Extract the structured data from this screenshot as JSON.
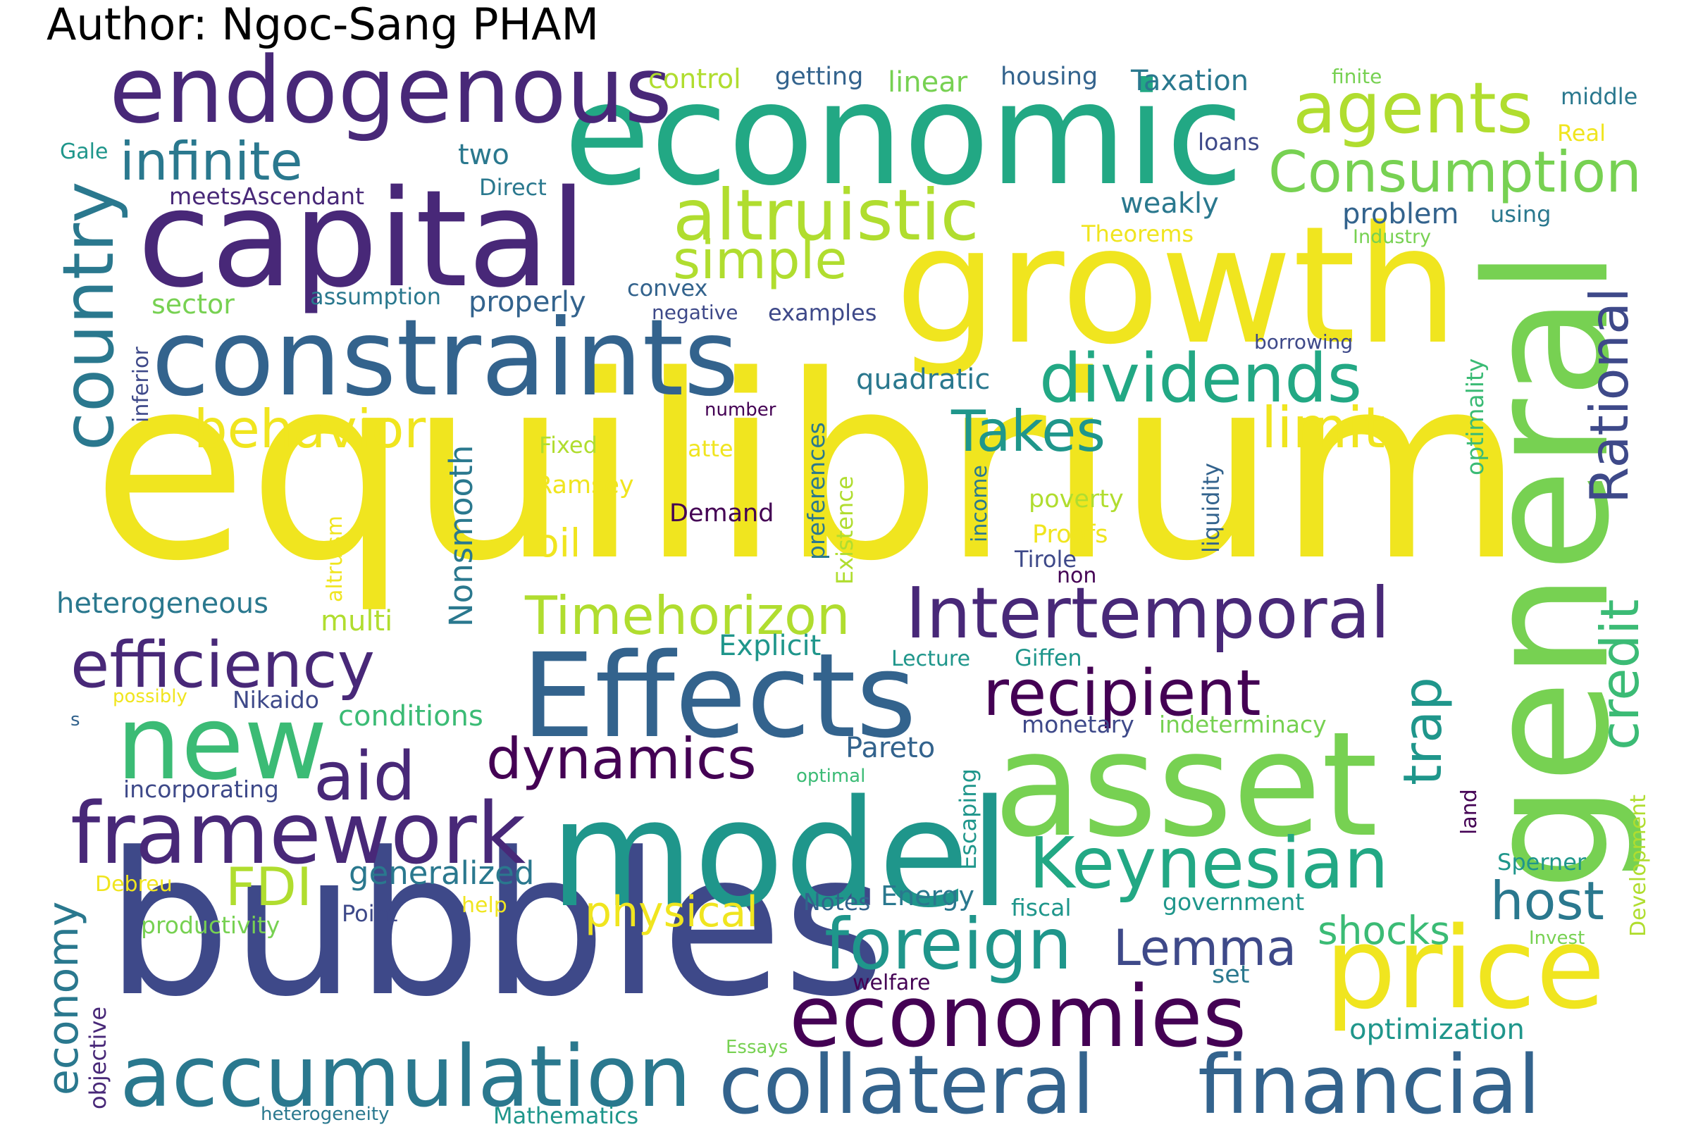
{
  "title": "Author: Ngoc-Sang PHAM",
  "palette": {
    "yellow": "#f0e51f",
    "lime": "#b0dd2f",
    "lightgreen": "#77d152",
    "green": "#3bbb75",
    "teal": "#22a884",
    "tealblue": "#1f968b",
    "cyan": "#2a788e",
    "blue": "#33638d",
    "indigo": "#3e4989",
    "purple": "#482878",
    "darkpurple": "#440154"
  },
  "words": [
    {
      "text": "equilibrium",
      "color": "yellow"
    },
    {
      "text": "economic",
      "color": "teal"
    },
    {
      "text": "bubbles",
      "color": "indigo"
    },
    {
      "text": "growth",
      "color": "yellow"
    },
    {
      "text": "capital",
      "color": "purple"
    },
    {
      "text": "general",
      "color": "lightgreen"
    },
    {
      "text": "asset",
      "color": "lightgreen"
    },
    {
      "text": "model",
      "color": "tealblue"
    },
    {
      "text": "Effects",
      "color": "blue"
    },
    {
      "text": "constraints",
      "color": "blue"
    },
    {
      "text": "endogenous",
      "color": "purple"
    },
    {
      "text": "price",
      "color": "yellow"
    },
    {
      "text": "economies",
      "color": "darkpurple"
    },
    {
      "text": "accumulation",
      "color": "cyan"
    },
    {
      "text": "financial",
      "color": "blue"
    },
    {
      "text": "collateral",
      "color": "blue"
    },
    {
      "text": "framework",
      "color": "purple"
    },
    {
      "text": "new",
      "color": "green"
    },
    {
      "text": "agents",
      "color": "lime"
    },
    {
      "text": "Intertemporal",
      "color": "purple"
    },
    {
      "text": "Keynesian",
      "color": "teal"
    },
    {
      "text": "recipient",
      "color": "darkpurple"
    },
    {
      "text": "altruistic",
      "color": "lime"
    },
    {
      "text": "dividends",
      "color": "teal"
    },
    {
      "text": "Consumption",
      "color": "lightgreen"
    },
    {
      "text": "efficiency",
      "color": "purple"
    },
    {
      "text": "foreign",
      "color": "tealblue"
    },
    {
      "text": "country",
      "color": "cyan"
    },
    {
      "text": "Timehorizon",
      "color": "lime"
    },
    {
      "text": "infinite",
      "color": "cyan"
    },
    {
      "text": "aid",
      "color": "purple"
    },
    {
      "text": "dynamics",
      "color": "darkpurple"
    },
    {
      "text": "Takes",
      "color": "tealblue"
    },
    {
      "text": "simple",
      "color": "lime"
    },
    {
      "text": "behavior",
      "color": "yellow"
    },
    {
      "text": "limit",
      "color": "yellow"
    },
    {
      "text": "Rational",
      "color": "indigo"
    },
    {
      "text": "credit",
      "color": "green"
    },
    {
      "text": "Lemma",
      "color": "indigo"
    },
    {
      "text": "host",
      "color": "cyan"
    },
    {
      "text": "trap",
      "color": "tealblue"
    },
    {
      "text": "FDI",
      "color": "lime"
    },
    {
      "text": "economy",
      "color": "cyan"
    },
    {
      "text": "physical",
      "color": "yellow"
    },
    {
      "text": "shocks",
      "color": "green"
    },
    {
      "text": "oil",
      "color": "yellow"
    },
    {
      "text": "Nonsmooth",
      "color": "cyan"
    },
    {
      "text": "generalized",
      "color": "cyan"
    },
    {
      "text": "heterogeneous",
      "color": "cyan"
    },
    {
      "text": "conditions",
      "color": "green"
    },
    {
      "text": "optimization",
      "color": "tealblue"
    },
    {
      "text": "problem",
      "color": "blue"
    },
    {
      "text": "weakly",
      "color": "cyan"
    },
    {
      "text": "quadratic",
      "color": "cyan"
    },
    {
      "text": "properly",
      "color": "blue"
    },
    {
      "text": "Explicit",
      "color": "tealblue"
    },
    {
      "text": "Pareto",
      "color": "blue"
    },
    {
      "text": "multi",
      "color": "lime"
    },
    {
      "text": "two",
      "color": "cyan"
    },
    {
      "text": "Taxation",
      "color": "cyan"
    },
    {
      "text": "linear",
      "color": "lightgreen"
    },
    {
      "text": "control",
      "color": "lime"
    },
    {
      "text": "getting",
      "color": "blue"
    },
    {
      "text": "housing",
      "color": "blue"
    },
    {
      "text": "finite",
      "color": "lightgreen"
    },
    {
      "text": "middle",
      "color": "cyan"
    },
    {
      "text": "Real",
      "color": "yellow"
    },
    {
      "text": "loans",
      "color": "indigo"
    },
    {
      "text": "using",
      "color": "cyan"
    },
    {
      "text": "Industry",
      "color": "lightgreen"
    },
    {
      "text": "Theorems",
      "color": "yellow"
    },
    {
      "text": "Gale",
      "color": "tealblue"
    },
    {
      "text": "Direct",
      "color": "cyan"
    },
    {
      "text": "meetsAscendant",
      "color": "purple"
    },
    {
      "text": "sector",
      "color": "lightgreen"
    },
    {
      "text": "assumption",
      "color": "cyan"
    },
    {
      "text": "convex",
      "color": "blue"
    },
    {
      "text": "negative",
      "color": "indigo"
    },
    {
      "text": "examples",
      "color": "indigo"
    },
    {
      "text": "borrowing",
      "color": "indigo"
    },
    {
      "text": "optimality",
      "color": "green"
    },
    {
      "text": "inferior",
      "color": "indigo"
    },
    {
      "text": "number",
      "color": "darkpurple"
    },
    {
      "text": "Fixed",
      "color": "lime"
    },
    {
      "text": "matter",
      "color": "yellow"
    },
    {
      "text": "Ramsey",
      "color": "yellow"
    },
    {
      "text": "Demand",
      "color": "darkpurple"
    },
    {
      "text": "preferences",
      "color": "cyan"
    },
    {
      "text": "Existence",
      "color": "lime"
    },
    {
      "text": "income",
      "color": "cyan"
    },
    {
      "text": "liquidity",
      "color": "blue"
    },
    {
      "text": "poverty",
      "color": "lime"
    },
    {
      "text": "Proofs",
      "color": "yellow"
    },
    {
      "text": "Tirole",
      "color": "indigo"
    },
    {
      "text": "non",
      "color": "darkpurple"
    },
    {
      "text": "altruism",
      "color": "yellow"
    },
    {
      "text": "Lecture",
      "color": "tealblue"
    },
    {
      "text": "Giffen",
      "color": "tealblue"
    },
    {
      "text": "possibly",
      "color": "yellow"
    },
    {
      "text": "Nikaido",
      "color": "indigo"
    },
    {
      "text": "s",
      "color": "blue"
    },
    {
      "text": "monetary",
      "color": "indigo"
    },
    {
      "text": "indeterminacy",
      "color": "lightgreen"
    },
    {
      "text": "incorporating",
      "color": "indigo"
    },
    {
      "text": "optimal",
      "color": "green"
    },
    {
      "text": "Escaping",
      "color": "tealblue"
    },
    {
      "text": "land",
      "color": "darkpurple"
    },
    {
      "text": "Development",
      "color": "lime"
    },
    {
      "text": "Debreu",
      "color": "yellow"
    },
    {
      "text": "help",
      "color": "yellow"
    },
    {
      "text": "Point",
      "color": "indigo"
    },
    {
      "text": "Notes",
      "color": "blue"
    },
    {
      "text": "Energy",
      "color": "cyan"
    },
    {
      "text": "fiscal",
      "color": "tealblue"
    },
    {
      "text": "government",
      "color": "tealblue"
    },
    {
      "text": "Sperner",
      "color": "tealblue"
    },
    {
      "text": "productivity",
      "color": "lightgreen"
    },
    {
      "text": "objective",
      "color": "purple"
    },
    {
      "text": "welfare",
      "color": "darkpurple"
    },
    {
      "text": "set",
      "color": "cyan"
    },
    {
      "text": "Invest",
      "color": "lightgreen"
    },
    {
      "text": "Essays",
      "color": "lightgreen"
    },
    {
      "text": "heterogeneity",
      "color": "cyan"
    },
    {
      "text": "Mathematics",
      "color": "tealblue"
    }
  ]
}
